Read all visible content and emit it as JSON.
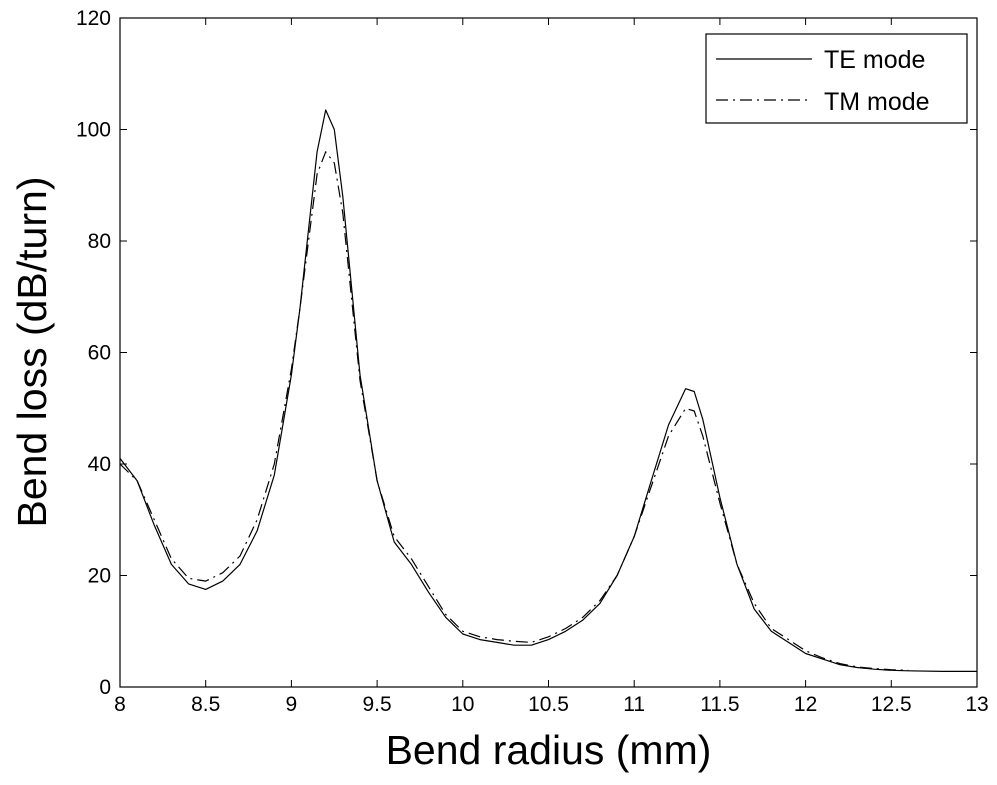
{
  "chart_data": {
    "type": "line",
    "title": "",
    "xlabel": "Bend radius (mm)",
    "ylabel": "Bend loss (dB/turn)",
    "xlim": [
      8,
      13
    ],
    "ylim": [
      0,
      120
    ],
    "xticks": [
      8,
      8.5,
      9,
      9.5,
      10,
      10.5,
      11,
      11.5,
      12,
      12.5,
      13
    ],
    "xtick_labels": [
      "8",
      "8.5",
      "9",
      "9.5",
      "10",
      "10.5",
      "11",
      "11.5",
      "12",
      "12.5",
      "13"
    ],
    "yticks": [
      0,
      20,
      40,
      60,
      80,
      100,
      120
    ],
    "ytick_labels": [
      "0",
      "20",
      "40",
      "60",
      "80",
      "100",
      "120"
    ],
    "grid": false,
    "legend_position": "top-right",
    "series": [
      {
        "name": "TE mode",
        "style": "solid",
        "color": "#000000",
        "points": [
          [
            8.0,
            41
          ],
          [
            8.1,
            37
          ],
          [
            8.2,
            29
          ],
          [
            8.3,
            22
          ],
          [
            8.4,
            18.5
          ],
          [
            8.5,
            17.5
          ],
          [
            8.6,
            19
          ],
          [
            8.7,
            22
          ],
          [
            8.8,
            28
          ],
          [
            8.9,
            38
          ],
          [
            9.0,
            56
          ],
          [
            9.05,
            68
          ],
          [
            9.1,
            82
          ],
          [
            9.15,
            96
          ],
          [
            9.2,
            103.5
          ],
          [
            9.25,
            100
          ],
          [
            9.3,
            88
          ],
          [
            9.35,
            72
          ],
          [
            9.4,
            56
          ],
          [
            9.5,
            37
          ],
          [
            9.6,
            26
          ],
          [
            9.7,
            22
          ],
          [
            9.8,
            17
          ],
          [
            9.9,
            12.5
          ],
          [
            10.0,
            9.5
          ],
          [
            10.1,
            8.5
          ],
          [
            10.2,
            8
          ],
          [
            10.3,
            7.5
          ],
          [
            10.4,
            7.5
          ],
          [
            10.5,
            8.5
          ],
          [
            10.6,
            10
          ],
          [
            10.7,
            12
          ],
          [
            10.8,
            15
          ],
          [
            10.9,
            20
          ],
          [
            11.0,
            27
          ],
          [
            11.1,
            37
          ],
          [
            11.2,
            47
          ],
          [
            11.3,
            53.5
          ],
          [
            11.35,
            53
          ],
          [
            11.4,
            48
          ],
          [
            11.5,
            34
          ],
          [
            11.6,
            22
          ],
          [
            11.7,
            14
          ],
          [
            11.8,
            10
          ],
          [
            11.9,
            8
          ],
          [
            12.0,
            6
          ],
          [
            12.1,
            5
          ],
          [
            12.2,
            4
          ],
          [
            12.3,
            3.5
          ],
          [
            12.4,
            3.2
          ],
          [
            12.5,
            3
          ],
          [
            12.6,
            2.9
          ],
          [
            12.8,
            2.8
          ],
          [
            13.0,
            2.8
          ]
        ]
      },
      {
        "name": "TM mode",
        "style": "dashed",
        "color": "#000000",
        "points": [
          [
            8.0,
            40
          ],
          [
            8.1,
            37
          ],
          [
            8.2,
            30
          ],
          [
            8.3,
            23
          ],
          [
            8.4,
            19.5
          ],
          [
            8.5,
            19
          ],
          [
            8.6,
            20.5
          ],
          [
            8.7,
            23.5
          ],
          [
            8.8,
            30
          ],
          [
            8.9,
            40
          ],
          [
            9.0,
            57
          ],
          [
            9.05,
            68
          ],
          [
            9.1,
            80
          ],
          [
            9.15,
            92
          ],
          [
            9.2,
            96
          ],
          [
            9.25,
            94
          ],
          [
            9.3,
            85
          ],
          [
            9.35,
            70
          ],
          [
            9.4,
            55
          ],
          [
            9.5,
            37
          ],
          [
            9.6,
            27
          ],
          [
            9.7,
            23
          ],
          [
            9.8,
            18
          ],
          [
            9.9,
            13
          ],
          [
            10.0,
            10
          ],
          [
            10.1,
            9
          ],
          [
            10.2,
            8.5
          ],
          [
            10.3,
            8.2
          ],
          [
            10.4,
            8
          ],
          [
            10.5,
            9
          ],
          [
            10.6,
            10.5
          ],
          [
            10.7,
            12.5
          ],
          [
            10.8,
            15.5
          ],
          [
            10.9,
            20
          ],
          [
            11.0,
            27
          ],
          [
            11.1,
            36
          ],
          [
            11.2,
            45
          ],
          [
            11.3,
            50
          ],
          [
            11.35,
            49.5
          ],
          [
            11.4,
            45
          ],
          [
            11.5,
            33
          ],
          [
            11.6,
            22
          ],
          [
            11.7,
            15
          ],
          [
            11.8,
            10.5
          ],
          [
            11.9,
            8.5
          ],
          [
            12.0,
            6.5
          ],
          [
            12.1,
            5.2
          ],
          [
            12.2,
            4.2
          ],
          [
            12.3,
            3.6
          ],
          [
            12.4,
            3.3
          ],
          [
            12.5,
            3.1
          ],
          [
            12.6,
            3
          ]
        ]
      }
    ]
  }
}
